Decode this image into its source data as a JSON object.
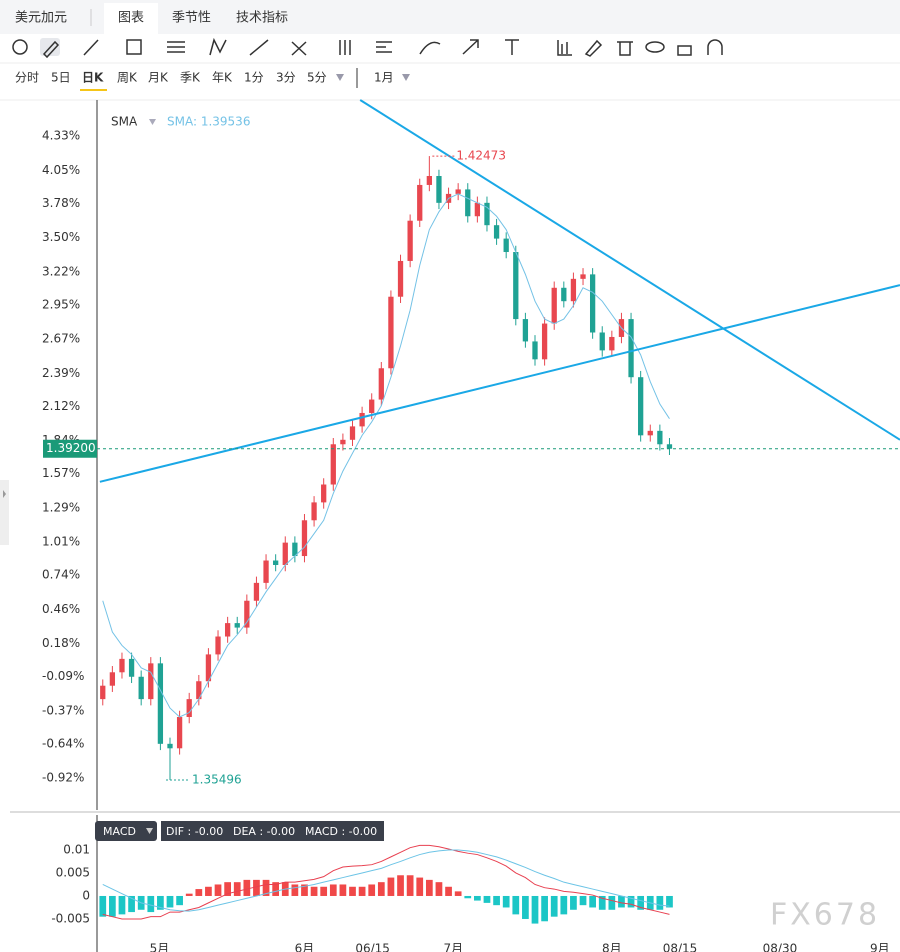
{
  "toolbar": {
    "symbol": "美元加元",
    "tabs": [
      "图表",
      "季节性",
      "技术指标"
    ],
    "periods": [
      "分时",
      "5日",
      "日K",
      "周K",
      "月K",
      "季K",
      "年K",
      "1分",
      "3分",
      "5分"
    ],
    "range": "1月"
  },
  "watermark": "FX678",
  "chart_data": [
    {
      "type": "candlestick",
      "indicator": "SMA",
      "indicator_label": "SMA: 1.39536",
      "xlim": [
        -0.6,
        83
      ],
      "xticks": [
        {
          "value": 5.9,
          "label": "5月"
        },
        {
          "value": 21.0,
          "label": "6月"
        },
        {
          "value": 28.1,
          "label": "06/15"
        },
        {
          "value": 36.5,
          "label": "7月"
        },
        {
          "value": 53.0,
          "label": "8月"
        },
        {
          "value": 60.1,
          "label": "08/15"
        },
        {
          "value": 70.5,
          "label": "08/30"
        },
        {
          "value": 80.9,
          "label": "9月"
        }
      ],
      "ylim": [
        1.3516,
        1.431
      ],
      "yticks": [
        {
          "value": 1.42696,
          "label": "4.33%"
        },
        {
          "value": 1.42313,
          "label": "4.05%"
        },
        {
          "value": 1.41944,
          "label": "3.78%"
        },
        {
          "value": 1.41561,
          "label": "3.50%"
        },
        {
          "value": 1.41178,
          "label": "3.22%"
        },
        {
          "value": 1.40809,
          "label": "2.95%"
        },
        {
          "value": 1.40426,
          "label": "2.67%"
        },
        {
          "value": 1.40043,
          "label": "2.39%"
        },
        {
          "value": 1.39674,
          "label": "2.12%"
        },
        {
          "value": 1.39291,
          "label": "1.84%"
        },
        {
          "value": 1.38921,
          "label": "1.57%"
        },
        {
          "value": 1.38538,
          "label": "1.29%"
        },
        {
          "value": 1.38155,
          "label": "1.01%"
        },
        {
          "value": 1.37786,
          "label": "0.74%"
        },
        {
          "value": 1.37403,
          "label": "0.46%"
        },
        {
          "value": 1.3702,
          "label": "0.18%"
        },
        {
          "value": 1.36651,
          "label": "-0.09%"
        },
        {
          "value": 1.36268,
          "label": "-0.37%"
        },
        {
          "value": 1.35899,
          "label": "-0.64%"
        },
        {
          "value": 1.35516,
          "label": "-0.92%"
        }
      ],
      "grid": false,
      "up_color": "#e8474f",
      "down_color": "#1fa294",
      "open": [
        1.364,
        1.3655,
        1.367,
        1.3685,
        1.3665,
        1.364,
        1.368,
        1.359,
        1.3585,
        1.362,
        1.364,
        1.366,
        1.369,
        1.371,
        1.3725,
        1.372,
        1.375,
        1.377,
        1.3795,
        1.379,
        1.3815,
        1.38,
        1.384,
        1.386,
        1.388,
        1.3925,
        1.393,
        1.3945,
        1.396,
        1.3975,
        1.401,
        1.409,
        1.413,
        1.4175,
        1.4215,
        1.4225,
        1.4195,
        1.4205,
        1.421,
        1.418,
        1.4195,
        1.417,
        1.4155,
        1.414,
        1.4065,
        1.404,
        1.402,
        1.406,
        1.41,
        1.4085,
        1.411,
        1.4115,
        1.405,
        1.403,
        1.4045,
        1.4065,
        1.4,
        1.3935,
        1.394,
        1.3925
      ],
      "high": [
        1.3662,
        1.3677,
        1.3692,
        1.3692,
        1.3672,
        1.3687,
        1.3687,
        1.3597,
        1.3627,
        1.3647,
        1.3667,
        1.3697,
        1.3717,
        1.3732,
        1.3732,
        1.3757,
        1.3777,
        1.3802,
        1.3802,
        1.3822,
        1.3822,
        1.3847,
        1.3867,
        1.3887,
        1.3932,
        1.3937,
        1.3952,
        1.3967,
        1.3982,
        1.4017,
        1.4097,
        1.4137,
        1.4182,
        1.4222,
        1.42473,
        1.4232,
        1.4212,
        1.4217,
        1.4217,
        1.4202,
        1.4202,
        1.4177,
        1.4162,
        1.4147,
        1.4072,
        1.4047,
        1.4067,
        1.4107,
        1.4107,
        1.4117,
        1.4122,
        1.4122,
        1.4057,
        1.4052,
        1.4072,
        1.4072,
        1.4007,
        1.3947,
        1.3947,
        1.3932
      ],
      "low": [
        1.3633,
        1.3648,
        1.3663,
        1.3658,
        1.3633,
        1.3633,
        1.3583,
        1.35496,
        1.3578,
        1.3613,
        1.3633,
        1.3653,
        1.3683,
        1.3703,
        1.3713,
        1.3713,
        1.3743,
        1.3763,
        1.3783,
        1.3783,
        1.3793,
        1.3793,
        1.3833,
        1.3853,
        1.3873,
        1.3918,
        1.3923,
        1.3938,
        1.3953,
        1.3968,
        1.4003,
        1.4083,
        1.4123,
        1.4168,
        1.4208,
        1.4188,
        1.4188,
        1.4198,
        1.4173,
        1.4173,
        1.4163,
        1.4148,
        1.4133,
        1.4058,
        1.4033,
        1.4013,
        1.4013,
        1.4053,
        1.4078,
        1.4078,
        1.4103,
        1.4043,
        1.4023,
        1.4023,
        1.4038,
        1.3993,
        1.3928,
        1.3928,
        1.3918,
        1.3913
      ],
      "close": [
        1.3655,
        1.367,
        1.3685,
        1.3665,
        1.364,
        1.368,
        1.359,
        1.3585,
        1.362,
        1.364,
        1.366,
        1.369,
        1.371,
        1.3725,
        1.372,
        1.375,
        1.377,
        1.3795,
        1.379,
        1.3815,
        1.38,
        1.384,
        1.386,
        1.388,
        1.3925,
        1.393,
        1.3945,
        1.396,
        1.3975,
        1.401,
        1.409,
        1.413,
        1.4175,
        1.4215,
        1.4225,
        1.4195,
        1.4205,
        1.421,
        1.418,
        1.4195,
        1.417,
        1.4155,
        1.414,
        1.4065,
        1.404,
        1.402,
        1.406,
        1.41,
        1.4085,
        1.411,
        1.4115,
        1.405,
        1.403,
        1.4045,
        1.4065,
        1.4,
        1.3935,
        1.394,
        1.3925,
        1.392
      ],
      "series": [
        {
          "name": "SMA",
          "color": "#74c2e6",
          "values": [
            1.375,
            1.3715,
            1.37,
            1.369,
            1.3675,
            1.367,
            1.365,
            1.363,
            1.362,
            1.3625,
            1.364,
            1.366,
            1.368,
            1.37,
            1.3712,
            1.3726,
            1.3743,
            1.376,
            1.3775,
            1.379,
            1.38,
            1.381,
            1.3825,
            1.384,
            1.387,
            1.3895,
            1.3915,
            1.3935,
            1.395,
            1.3968,
            1.4,
            1.4035,
            1.4075,
            1.4125,
            1.4165,
            1.4185,
            1.42,
            1.4205,
            1.42,
            1.4195,
            1.419,
            1.418,
            1.4165,
            1.414,
            1.4115,
            1.4085,
            1.4065,
            1.406,
            1.4065,
            1.408,
            1.41,
            1.4095,
            1.4085,
            1.407,
            1.4055,
            1.4045,
            1.4025,
            1.3995,
            1.397,
            1.39536
          ]
        }
      ],
      "trend_lines": [
        {
          "color": "#1aa8e6",
          "x": [
            26.8,
            83
          ],
          "y": [
            1.431,
            1.393
          ]
        },
        {
          "color": "#1aa8e6",
          "x": [
            -0.3,
            83
          ],
          "y": [
            1.3883,
            1.4103
          ]
        }
      ],
      "last_price": {
        "value": 1.392,
        "label": "1.39200"
      },
      "last_color": "#1a9a78",
      "high_mark": 1.42473,
      "low_mark": 1.35496
    },
    {
      "type": "macd",
      "button": "MACD",
      "readout": [
        "DIF : -0.00",
        "DEA : -0.00",
        "MACD : -0.00"
      ],
      "xlim": [
        -0.6,
        83
      ],
      "ylim": [
        -0.00957,
        0.0176
      ],
      "yticks": [
        0.01,
        0.005,
        0,
        -0.005
      ],
      "histogram": {
        "up_color": "#f04848",
        "down_color": "#1cc6c6",
        "values": [
          -0.0045,
          -0.0045,
          -0.004,
          -0.0035,
          -0.003,
          -0.0035,
          -0.003,
          -0.0025,
          -0.002,
          0.0005,
          0.0015,
          0.002,
          0.0025,
          0.003,
          0.003,
          0.0035,
          0.0035,
          0.0035,
          0.003,
          0.003,
          0.0025,
          0.0025,
          0.002,
          0.002,
          0.0025,
          0.0025,
          0.002,
          0.002,
          0.0025,
          0.003,
          0.004,
          0.0045,
          0.0045,
          0.004,
          0.0035,
          0.003,
          0.002,
          0.001,
          -0.0005,
          -0.001,
          -0.0015,
          -0.002,
          -0.0025,
          -0.004,
          -0.005,
          -0.006,
          -0.0055,
          -0.0045,
          -0.004,
          -0.003,
          -0.002,
          -0.0025,
          -0.003,
          -0.003,
          -0.0025,
          -0.0025,
          -0.003,
          -0.003,
          -0.003,
          -0.0025
        ]
      },
      "series": [
        {
          "color": "#e84050",
          "values": [
            -0.004,
            -0.0045,
            -0.005,
            -0.005,
            -0.005,
            -0.0045,
            -0.0045,
            -0.0035,
            -0.0035,
            -0.003,
            -0.0025,
            -0.0015,
            -0.0005,
            0.0005,
            0.001,
            0.0015,
            0.002,
            0.0025,
            0.0025,
            0.003,
            0.003,
            0.0033,
            0.0036,
            0.0042,
            0.0055,
            0.0063,
            0.0065,
            0.0066,
            0.0068,
            0.0075,
            0.0085,
            0.0095,
            0.0105,
            0.011,
            0.011,
            0.0107,
            0.0102,
            0.0097,
            0.0093,
            0.009,
            0.0083,
            0.0075,
            0.0065,
            0.005,
            0.004,
            0.0025,
            0.0018,
            0.0015,
            0.001,
            0.0008,
            0.0005,
            0.0002,
            -0.0005,
            -0.001,
            -0.0015,
            -0.0018,
            -0.0025,
            -0.003,
            -0.0035,
            -0.004
          ]
        },
        {
          "color": "#6cc4e6",
          "values": [
            0.0025,
            0.0015,
            0.0005,
            -0.0005,
            -0.0015,
            -0.002,
            -0.0025,
            -0.003,
            -0.0032,
            -0.0033,
            -0.003,
            -0.0025,
            -0.002,
            -0.0015,
            -0.001,
            -0.0005,
            0,
            0.0005,
            0.001,
            0.0015,
            0.0018,
            0.0021,
            0.0025,
            0.003,
            0.0035,
            0.004,
            0.0045,
            0.005,
            0.0055,
            0.006,
            0.0068,
            0.0075,
            0.0083,
            0.009,
            0.0095,
            0.0098,
            0.01,
            0.01,
            0.0098,
            0.0095,
            0.009,
            0.0085,
            0.0078,
            0.007,
            0.0062,
            0.0053,
            0.0045,
            0.0038,
            0.003,
            0.0025,
            0.002,
            0.0015,
            0.001,
            0.0005,
            0,
            -0.0005,
            -0.001,
            -0.0015,
            -0.002,
            -0.0022
          ]
        }
      ]
    }
  ]
}
